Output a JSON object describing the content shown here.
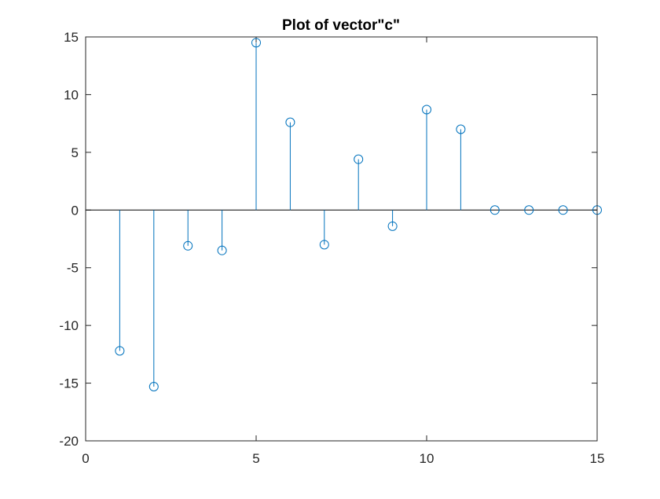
{
  "chart_data": {
    "type": "stem",
    "title": "Plot of vector\"c\"",
    "xlabel": "",
    "ylabel": "",
    "xlim": [
      0,
      15
    ],
    "ylim": [
      -20,
      15
    ],
    "x_ticks": [
      0,
      5,
      10,
      15
    ],
    "y_ticks": [
      -20,
      -15,
      -10,
      -5,
      0,
      5,
      10,
      15
    ],
    "x_tick_labels": [
      "0",
      "5",
      "10",
      "15"
    ],
    "y_tick_labels": [
      "-20",
      "-15",
      "-10",
      "-5",
      "0",
      "5",
      "10",
      "15"
    ],
    "grid": false,
    "legend": null,
    "series": [
      {
        "name": "c",
        "color": "#0072BD",
        "marker": "circle-open",
        "x": [
          1,
          2,
          3,
          4,
          5,
          6,
          7,
          8,
          9,
          10,
          11,
          12,
          13,
          14,
          15
        ],
        "values": [
          -12.2,
          -15.3,
          -3.1,
          -3.5,
          14.5,
          7.6,
          -3.0,
          4.4,
          -1.4,
          8.7,
          7.0,
          0,
          0,
          0,
          0
        ]
      }
    ]
  }
}
